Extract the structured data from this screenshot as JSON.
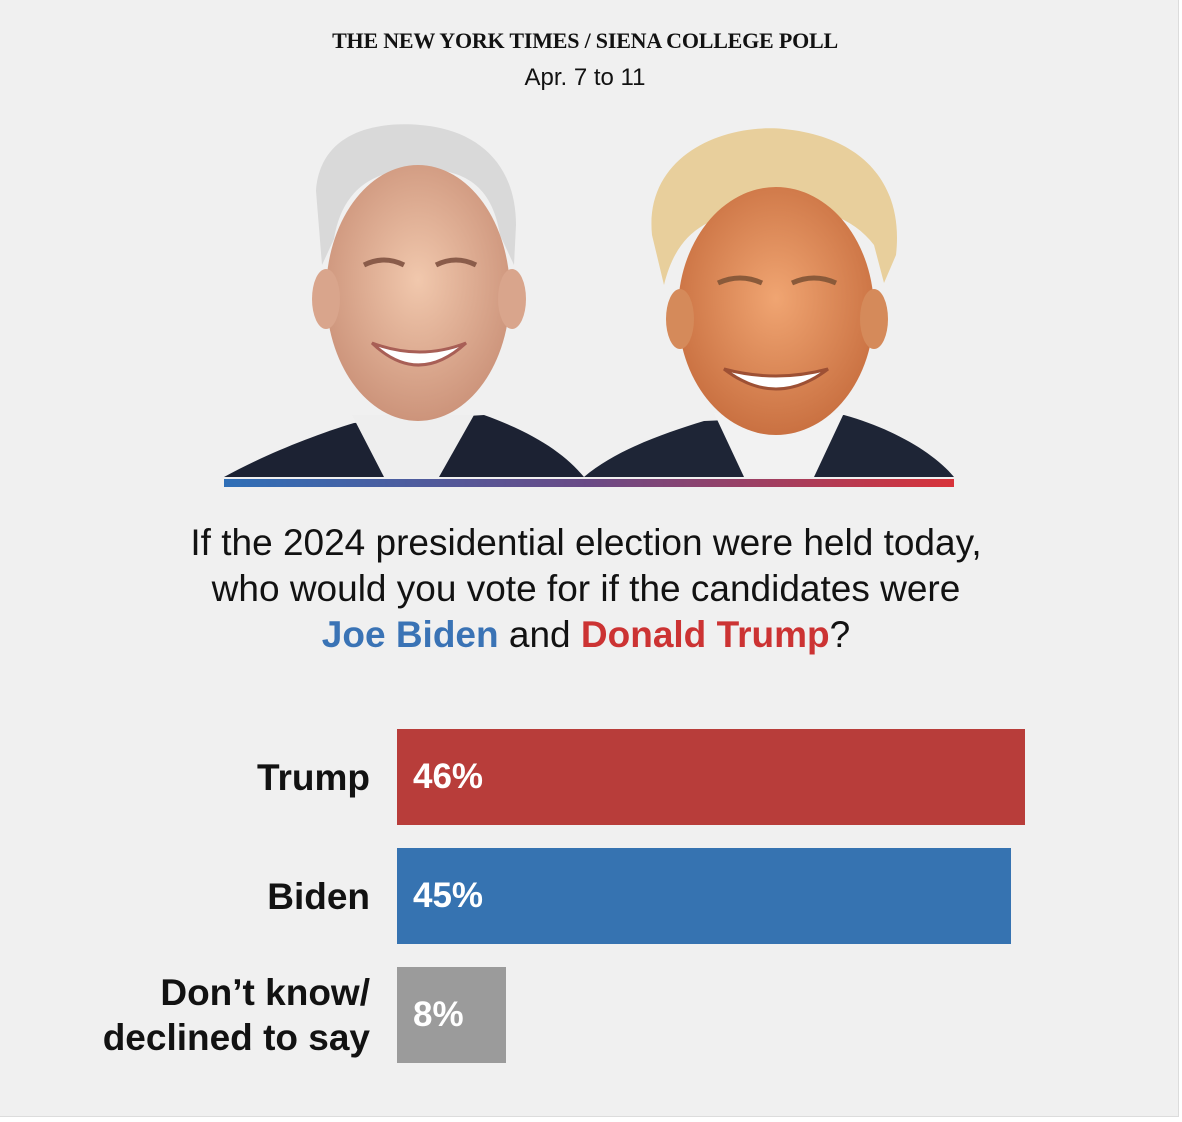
{
  "header": {
    "source": "THE NEW YORK TIMES / SIENA COLLEGE POLL",
    "dates": "Apr. 7 to 11"
  },
  "question": {
    "line1": "If the 2024 presidential election were held today,",
    "line2": "who would you vote for if the candidates were",
    "candidate1": "Joe Biden",
    "connector": " and ",
    "candidate2": "Donald Trump",
    "end": "?"
  },
  "colors": {
    "trump": "#b83d3a",
    "biden": "#3673b1",
    "undecided": "#9b9b9b"
  },
  "chart_data": {
    "type": "bar",
    "orientation": "horizontal",
    "categories": [
      "Trump",
      "Biden",
      "Don’t know/ declined to say"
    ],
    "category_lines": [
      [
        "Trump"
      ],
      [
        "Biden"
      ],
      [
        "Don’t know/",
        "declined to say"
      ]
    ],
    "values": [
      46,
      45,
      8
    ],
    "value_labels": [
      "46%",
      "45%",
      "8%"
    ],
    "unit": "%",
    "xlim": [
      0,
      100
    ]
  }
}
